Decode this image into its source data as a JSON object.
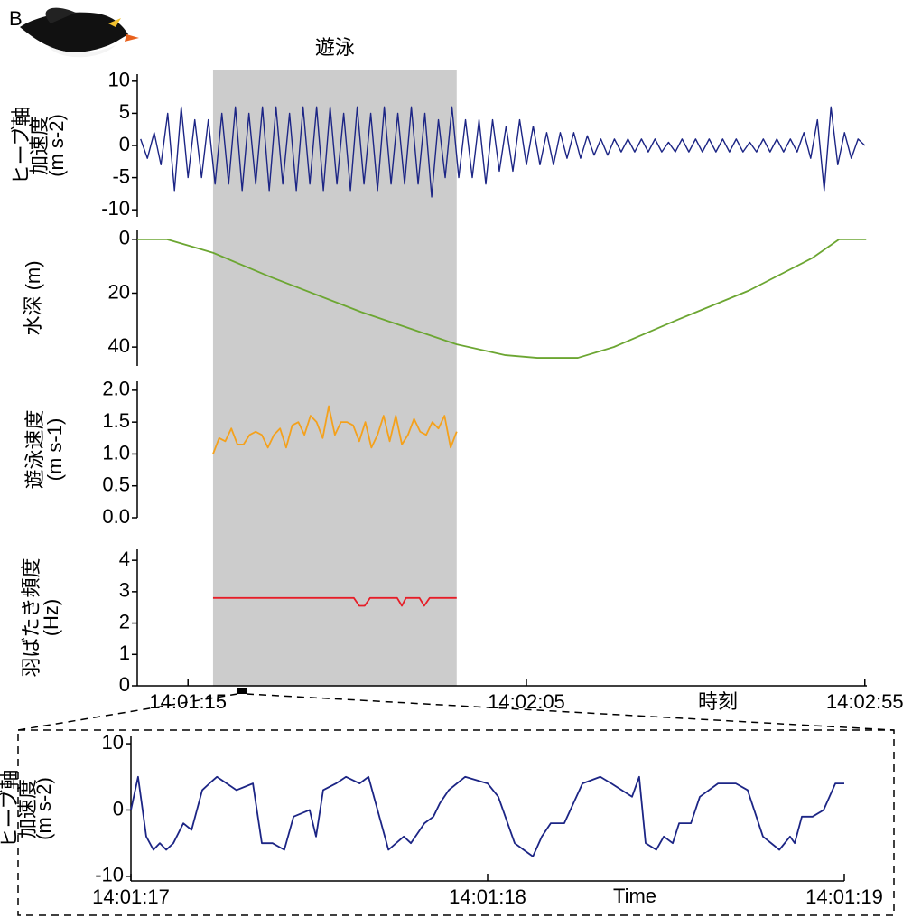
{
  "panel_label": "B",
  "chart_data": [
    {
      "type": "line",
      "ylabel": [
        "ヒーブ軸",
        "加速度",
        "(m s-2)"
      ],
      "color": "#1c2585",
      "ylim": [
        -11.1,
        11.1
      ],
      "yticks": [
        -10,
        -5,
        0,
        5,
        10
      ],
      "highlight": {
        "label": "遊泳",
        "x": [
          50478.7,
          50514.7
        ],
        "color": "#cccccc"
      },
      "x": [
        50468,
        50469,
        50470,
        50471,
        50472,
        50473,
        50474,
        50475,
        50476,
        50477,
        50478,
        50479,
        50480,
        50481,
        50482,
        50483,
        50484,
        50485,
        50486,
        50487,
        50488,
        50489,
        50490,
        50491,
        50492,
        50493,
        50494,
        50495,
        50496,
        50497,
        50498,
        50499,
        50500,
        50501,
        50502,
        50503,
        50504,
        50505,
        50506,
        50507,
        50508,
        50509,
        50510,
        50511,
        50512,
        50513,
        50514,
        50515,
        50516,
        50517,
        50518,
        50519,
        50520,
        50521,
        50522,
        50523,
        50524,
        50525,
        50526,
        50527,
        50528,
        50529,
        50530,
        50531,
        50532,
        50533,
        50534,
        50535,
        50536,
        50537,
        50538,
        50539,
        50540,
        50541,
        50542,
        50543,
        50544,
        50545,
        50546,
        50547,
        50548,
        50549,
        50550,
        50551,
        50552,
        50553,
        50554,
        50555,
        50556,
        50557,
        50558,
        50559,
        50560,
        50561,
        50562,
        50563,
        50564,
        50565,
        50566,
        50567,
        50568,
        50569,
        50570,
        50571,
        50572,
        50573,
        50574,
        50575
      ],
      "values": [
        1,
        -2,
        2,
        -3,
        5,
        -7,
        6,
        -5,
        4,
        -5,
        4,
        -6,
        5,
        -6,
        6,
        -7,
        5,
        -6,
        6,
        -7,
        6,
        -6,
        5,
        -7,
        6,
        -6,
        6,
        -7,
        6,
        -6,
        5,
        -7,
        6,
        -6,
        5,
        -7,
        6,
        -6,
        5,
        -6,
        6,
        -6,
        5,
        -8,
        4,
        -5,
        6,
        -5,
        4,
        -5,
        4,
        -6,
        4,
        -4,
        3,
        -4,
        4,
        -3,
        3,
        -3,
        2,
        -3,
        2,
        -2,
        2,
        -2,
        1.5,
        -1.5,
        1,
        -1.5,
        1,
        -1,
        1,
        -1,
        1,
        -1,
        1,
        -1,
        0.5,
        -1,
        1,
        -1,
        1,
        -1,
        1,
        -1,
        1,
        -1,
        1,
        -1,
        0.5,
        -1,
        1,
        -1,
        1,
        -1,
        1,
        -1,
        2,
        -2,
        4,
        -7,
        6,
        -3,
        2,
        -2,
        1,
        0
      ]
    },
    {
      "type": "line",
      "ylabel": [
        "水深 (m)"
      ],
      "color": "#6ca632",
      "ylim": [
        47,
        -3.3
      ],
      "yticks": [
        0,
        20,
        40
      ],
      "x": [
        50467.5,
        50471.9,
        50478.7,
        50487.2,
        50500.6,
        50514.7,
        50521.9,
        50526.6,
        50532.6,
        50537.9,
        50547.2,
        50557.9,
        50567.2,
        50571.2,
        50575.2
      ],
      "values": [
        0,
        0,
        5,
        14,
        27,
        39,
        43,
        44,
        44,
        40,
        30,
        19,
        7,
        0,
        0
      ]
    },
    {
      "type": "line",
      "ylabel": [
        "遊泳速度",
        "(m s-1)"
      ],
      "color": "#f4a11c",
      "ylim": [
        0,
        2.14
      ],
      "yticks": [
        {
          "value": 0,
          "label": "0.0"
        },
        0.5,
        {
          "value": 1,
          "label": "1.0"
        },
        1.5,
        {
          "value": 2,
          "label": "2.0"
        }
      ],
      "x": [
        50478.7,
        50479.6,
        50480.5,
        50481.4,
        50482.3,
        50483.2,
        50484.1,
        50485.0,
        50485.9,
        50486.8,
        50487.7,
        50488.6,
        50489.5,
        50490.4,
        50491.3,
        50492.2,
        50493.1,
        50494.0,
        50494.9,
        50495.8,
        50496.7,
        50497.6,
        50498.5,
        50499.4,
        50500.3,
        50501.2,
        50502.1,
        50503.0,
        50503.9,
        50504.8,
        50505.7,
        50506.6,
        50507.5,
        50508.4,
        50509.3,
        50510.2,
        50511.1,
        50512.0,
        50512.9,
        50513.8,
        50514.7
      ],
      "values": [
        1.0,
        1.25,
        1.2,
        1.4,
        1.15,
        1.15,
        1.3,
        1.35,
        1.3,
        1.1,
        1.3,
        1.4,
        1.1,
        1.45,
        1.5,
        1.3,
        1.6,
        1.5,
        1.25,
        1.75,
        1.3,
        1.5,
        1.5,
        1.45,
        1.2,
        1.5,
        1.1,
        1.3,
        1.6,
        1.2,
        1.6,
        1.15,
        1.3,
        1.55,
        1.35,
        1.3,
        1.5,
        1.4,
        1.6,
        1.1,
        1.35
      ]
    },
    {
      "type": "line",
      "ylabel": [
        "羽ばたき頻度",
        "(Hz)"
      ],
      "color": "#e61e28",
      "ylim": [
        0,
        4.35
      ],
      "yticks": [
        0,
        1,
        2,
        3,
        4
      ],
      "xlim": [
        50467.5,
        50575.3
      ],
      "xticks": [
        {
          "value": 50475,
          "label": "14:01:15"
        },
        {
          "value": 50525,
          "label": "14:02:05"
        },
        {
          "value": 50575,
          "label": "14:02:55"
        }
      ],
      "xlabel": "時刻",
      "x": [
        50478.7,
        50499.5,
        50500.3,
        50501.1,
        50501.9,
        50505.9,
        50506.6,
        50507.2,
        50509.2,
        50509.9,
        50510.7,
        50514.7
      ],
      "values": [
        2.8,
        2.8,
        2.55,
        2.55,
        2.8,
        2.8,
        2.55,
        2.8,
        2.8,
        2.55,
        2.8,
        2.8
      ]
    },
    {
      "type": "line",
      "ylabel": [
        "ヒーブ軸",
        "加速度",
        "(m s-2)"
      ],
      "color": "#1c2585",
      "ylim": [
        -10.7,
        11.1
      ],
      "yticks": [
        -10,
        0,
        10
      ],
      "xlim": [
        50477,
        50479
      ],
      "xticks": [
        {
          "value": 50477,
          "label": "14:01:17"
        },
        {
          "value": 50478,
          "label": "14:01:18"
        },
        {
          "value": 50479,
          "label": "14:01:19"
        }
      ],
      "xlabel": "Time",
      "x": [
        50477,
        50477.02,
        50477.043,
        50477.063,
        50477.081,
        50477.099,
        50477.119,
        50477.147,
        50477.17,
        50477.2,
        50477.22,
        50477.241,
        50477.296,
        50477.342,
        50477.367,
        50477.397,
        50477.43,
        50477.456,
        50477.501,
        50477.519,
        50477.539,
        50477.575,
        50477.603,
        50477.641,
        50477.666,
        50477.722,
        50477.765,
        50477.785,
        50477.823,
        50477.848,
        50477.866,
        50477.891,
        50477.937,
        50478,
        50478.03,
        50478.076,
        50478.101,
        50478.127,
        50478.152,
        50478.177,
        50478.215,
        50478.266,
        50478.316,
        50478.347,
        50478.405,
        50478.425,
        50478.443,
        50478.473,
        50478.494,
        50478.519,
        50478.537,
        50478.57,
        50478.595,
        50478.646,
        50478.696,
        50478.729,
        50478.772,
        50478.818,
        50478.848,
        50478.861,
        50478.881,
        50478.911,
        50478.942,
        50478.975,
        50479
      ],
      "values": [
        0,
        5,
        -4,
        -6,
        -5,
        -6,
        -5,
        -2,
        -3,
        3,
        4,
        5,
        3,
        4,
        -5,
        -5,
        -6,
        -1,
        0,
        -4,
        3,
        4,
        5,
        4,
        5,
        -6,
        -4,
        -5,
        -2,
        -1,
        1,
        3,
        5,
        4,
        2,
        -5,
        -6,
        -7,
        -4,
        -2,
        -2,
        4,
        5,
        4,
        2,
        5,
        -5,
        -6,
        -4,
        -5,
        -2,
        -2,
        2,
        4,
        4,
        3,
        -4,
        -6,
        -4,
        -5,
        -1,
        -1,
        0,
        4,
        4
      ]
    }
  ]
}
